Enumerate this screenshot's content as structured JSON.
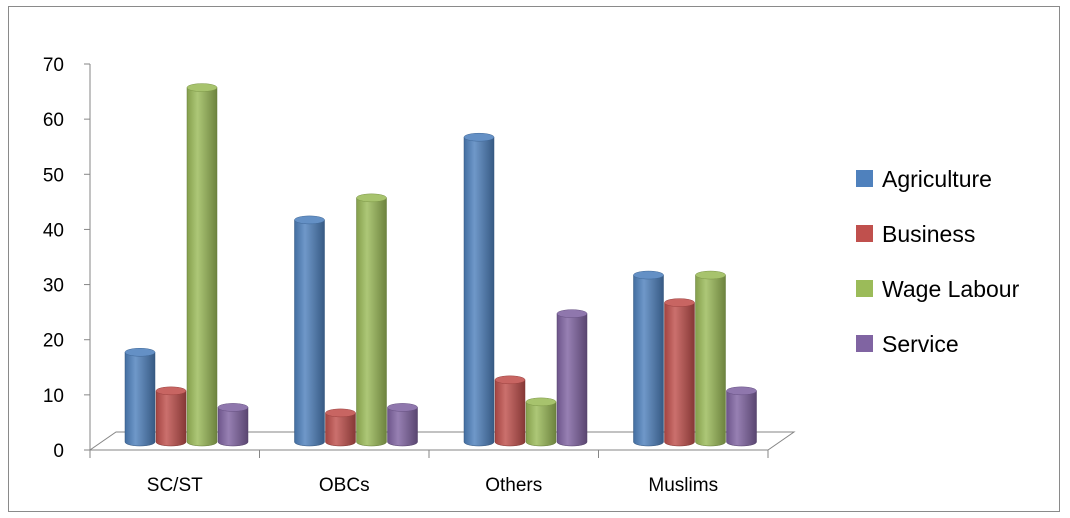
{
  "chart_data": {
    "type": "bar",
    "title": "",
    "xlabel": "",
    "ylabel": "",
    "ylim": [
      0,
      70
    ],
    "yticks": [
      0,
      10,
      20,
      30,
      40,
      50,
      60,
      70
    ],
    "categories": [
      "SC/ST",
      "OBCs",
      "Others",
      "Muslims"
    ],
    "series": [
      {
        "name": "Agriculture",
        "color": "#4F81BD",
        "values": [
          17,
          41,
          56,
          31
        ]
      },
      {
        "name": "Business",
        "color": "#C0504D",
        "values": [
          10,
          6,
          12,
          26
        ]
      },
      {
        "name": "Wage Labour",
        "color": "#9BBB59",
        "values": [
          65,
          45,
          8,
          31
        ]
      },
      {
        "name": "Service",
        "color": "#8064A2",
        "values": [
          7,
          7,
          24,
          10
        ]
      }
    ],
    "grid": false,
    "legend_position": "right",
    "style": "3d-cylinder"
  }
}
